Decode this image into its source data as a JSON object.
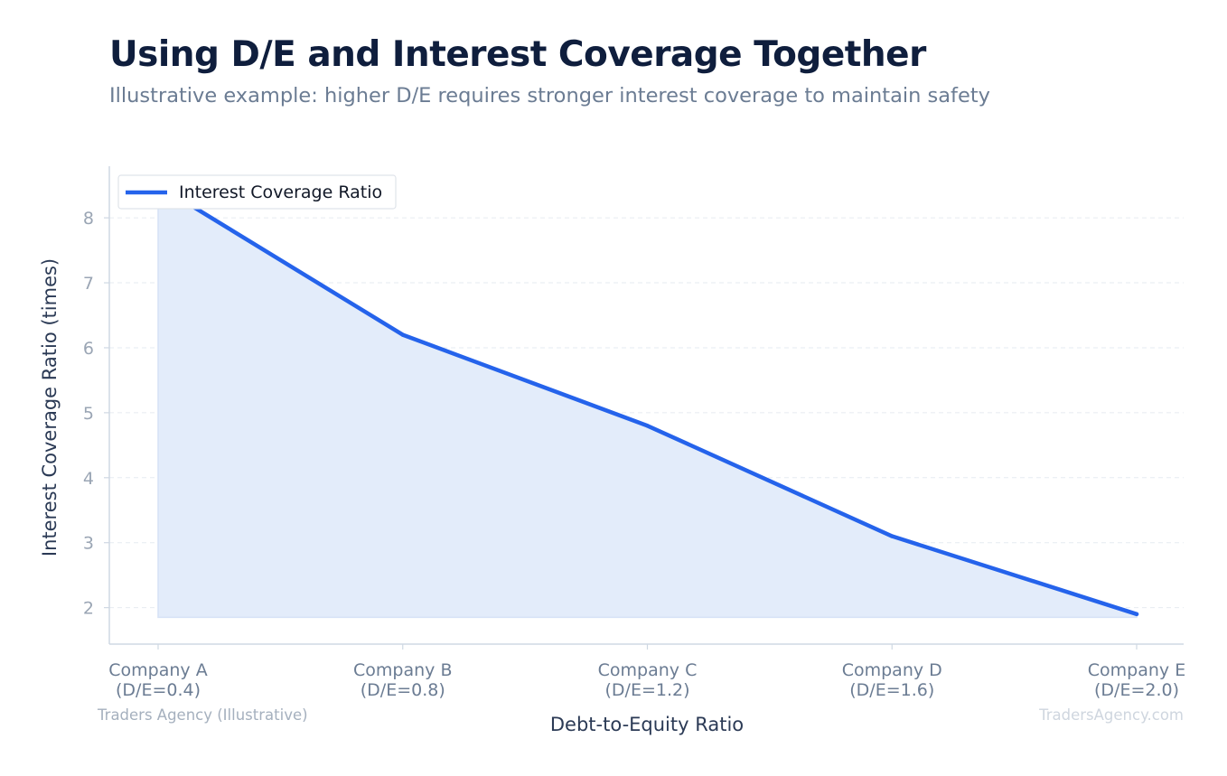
{
  "header": {
    "title": "Using D/E and Interest Coverage Together",
    "subtitle": "Illustrative example: higher D/E requires stronger interest coverage to maintain safety"
  },
  "chart_data": {
    "type": "area",
    "title": "Using D/E and Interest Coverage Together",
    "subtitle": "Illustrative example: higher D/E requires stronger interest coverage to maintain safety",
    "xlabel": "Debt-to-Equity Ratio",
    "ylabel": "Interest Coverage Ratio (times)",
    "categories": [
      [
        "Company A",
        "(D/E=0.4)"
      ],
      [
        "Company B",
        "(D/E=0.8)"
      ],
      [
        "Company C",
        "(D/E=1.2)"
      ],
      [
        "Company D",
        "(D/E=1.6)"
      ],
      [
        "Company E",
        "(D/E=2.0)"
      ]
    ],
    "series": [
      {
        "name": "Interest Coverage Ratio",
        "values": [
          8.5,
          6.2,
          4.8,
          3.1,
          1.9
        ]
      }
    ],
    "ylim": [
      1.55,
      8.85
    ],
    "yticks": [
      2,
      3,
      4,
      5,
      6,
      7,
      8
    ],
    "grid": true,
    "legend_position": "top-left",
    "colors": {
      "line": "#2563eb",
      "fill": "#e3ecfa",
      "axis": "#cfd8e3",
      "grid": "#e6ebf1",
      "tick": "#9aa5b4"
    },
    "footer_left": "Traders Agency (Illustrative)",
    "footer_right": "TradersAgency.com"
  }
}
